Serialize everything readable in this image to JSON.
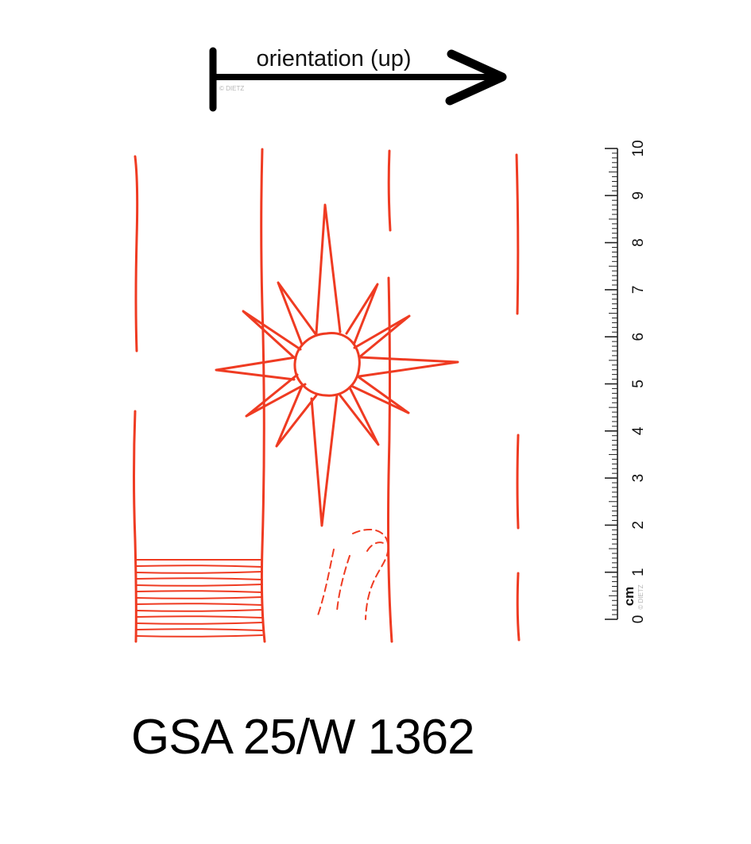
{
  "orientation": {
    "label": "orientation (up)"
  },
  "watermark": "© DIETZ",
  "scale": {
    "unit": "cm",
    "min": 0,
    "max": 10,
    "labels": [
      "0",
      "1",
      "2",
      "3",
      "4",
      "5",
      "6",
      "7",
      "8",
      "9",
      "10"
    ]
  },
  "catalog_id": "GSA 25/W 1362",
  "colors": {
    "ink": "#ef3b22",
    "arrow": "#000000",
    "text": "#000000"
  }
}
